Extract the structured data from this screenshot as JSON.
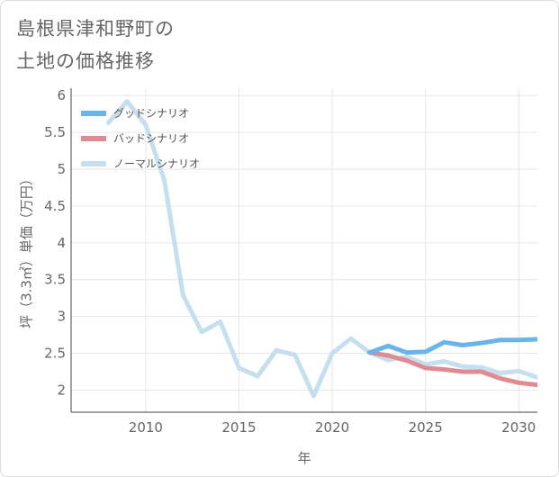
{
  "title": {
    "line1": "島根県津和野町の",
    "line2": "土地の価格推移"
  },
  "colors": {
    "good": "#6bb4ea",
    "bad": "#e08b92",
    "normal": "#c5dfee",
    "grid": "#e6e6e6",
    "axis": "#444444",
    "background": "#ffffff"
  },
  "chart_data": {
    "type": "line",
    "title": "島根県津和野町の土地の価格推移",
    "xlabel": "年",
    "ylabel": "坪（3.3㎡）単価（万円）",
    "xlim": [
      2006,
      2031
    ],
    "ylim": [
      1.7,
      6.1
    ],
    "x_ticks": [
      2010,
      2015,
      2020,
      2025,
      2030
    ],
    "x_tick_labels": [
      "2010",
      "2015",
      "2020",
      "2025",
      "2030"
    ],
    "y_ticks": [
      2,
      2.5,
      3,
      3.5,
      4,
      4.5,
      5,
      5.5,
      6
    ],
    "y_tick_labels": [
      "2",
      "2.5",
      "3",
      "3.5",
      "4",
      "4.5",
      "5",
      "5.5",
      "6"
    ],
    "grid": true,
    "legend_position": "top-left",
    "series": [
      {
        "name": "グッドシナリオ",
        "color_key": "good",
        "x": [
          2022,
          2023,
          2024,
          2025,
          2026,
          2027,
          2028,
          2029,
          2030,
          2031
        ],
        "values": [
          2.51,
          2.6,
          2.51,
          2.52,
          2.65,
          2.61,
          2.64,
          2.68,
          2.68,
          2.69
        ]
      },
      {
        "name": "バッドシナリオ",
        "color_key": "bad",
        "x": [
          2022,
          2023,
          2024,
          2025,
          2026,
          2027,
          2028,
          2029,
          2030,
          2031
        ],
        "values": [
          2.51,
          2.47,
          2.4,
          2.3,
          2.28,
          2.25,
          2.25,
          2.16,
          2.1,
          2.07
        ]
      },
      {
        "name": "ノーマルシナリオ",
        "color_key": "normal",
        "x": [
          2008,
          2009,
          2010,
          2011,
          2012,
          2013,
          2014,
          2015,
          2016,
          2017,
          2018,
          2019,
          2020,
          2021,
          2022,
          2023,
          2024,
          2025,
          2026,
          2027,
          2028,
          2029,
          2030,
          2031
        ],
        "values": [
          5.63,
          5.92,
          5.6,
          4.85,
          3.29,
          2.79,
          2.93,
          2.3,
          2.19,
          2.54,
          2.48,
          1.92,
          2.5,
          2.7,
          2.51,
          2.41,
          2.45,
          2.35,
          2.39,
          2.32,
          2.31,
          2.23,
          2.26,
          2.17
        ]
      }
    ]
  }
}
